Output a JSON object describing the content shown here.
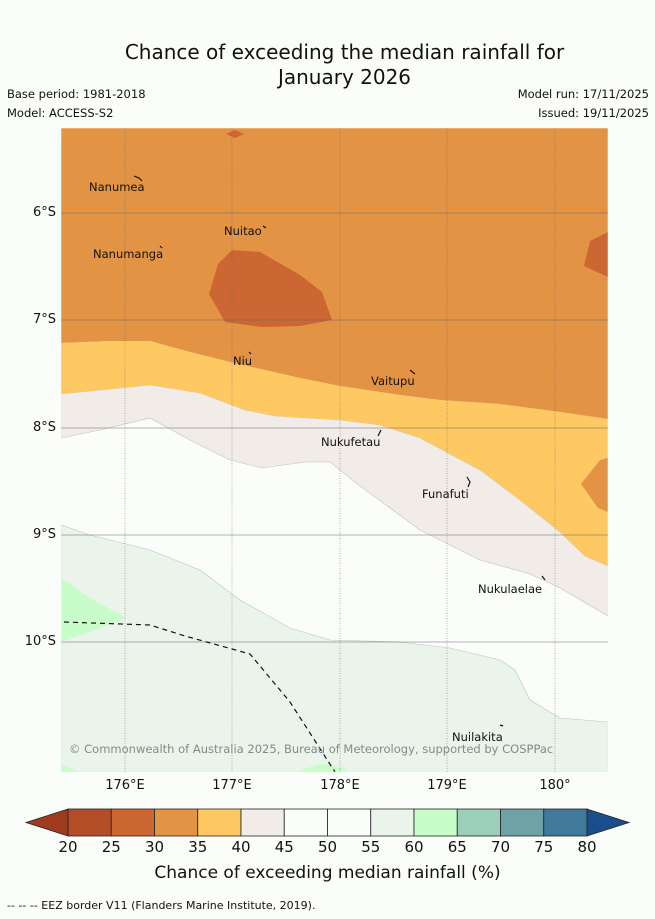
{
  "title_line1": "Chance of exceeding the median rainfall for",
  "title_line2": "January 2026",
  "base_period": "Base period: 1981-2018",
  "model": "Model: ACCESS-S2",
  "model_run": "Model run: 17/11/2025",
  "issued": "Issued: 19/11/2025",
  "latitudes": [
    "6°S",
    "7°S",
    "8°S",
    "9°S",
    "10°S"
  ],
  "longitudes": [
    "176°E",
    "177°E",
    "178°E",
    "179°E",
    "180°"
  ],
  "places": [
    {
      "name": "Nanumea"
    },
    {
      "name": "Nuitao"
    },
    {
      "name": "Nanumanga"
    },
    {
      "name": "Niu"
    },
    {
      "name": "Vaitupu"
    },
    {
      "name": "Nukufetau"
    },
    {
      "name": "Funafuti"
    },
    {
      "name": "Nukulaelae"
    },
    {
      "name": "Nuilakita"
    }
  ],
  "copyright": "© Commonwealth of Australia 2025, Bureau of Meteorology, supported by COSPPac",
  "colorbar": {
    "ticks": [
      "20",
      "25",
      "30",
      "35",
      "40",
      "45",
      "50",
      "55",
      "60",
      "65",
      "70",
      "75",
      "80"
    ],
    "colors": [
      "#9e3a1e",
      "#b34d28",
      "#cc6633",
      "#e29444",
      "#fec863",
      "#f1ece8",
      "#fbfdfb",
      "#fbfdfb",
      "#eaf4ea",
      "#c8fcc8",
      "#9ccfb9",
      "#6da3a6",
      "#3f7a9a",
      "#1a4d8c"
    ],
    "label": "Chance of exceeding median rainfall (%)"
  },
  "legend": "-- -- -- EEZ border V11 (Flanders Marine Institute, 2019)."
}
